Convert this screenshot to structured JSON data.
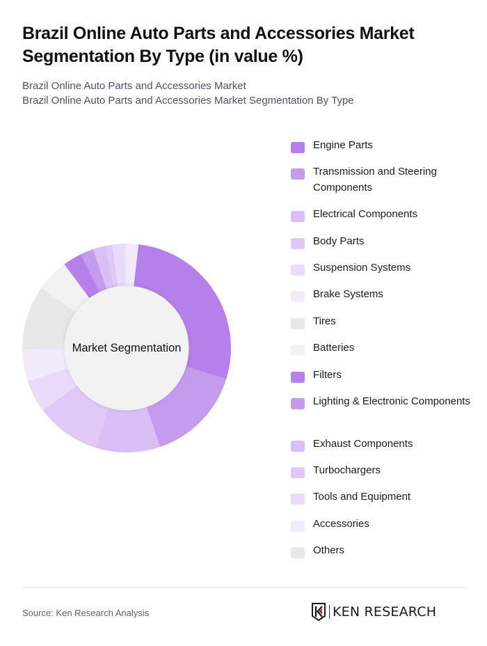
{
  "header": {
    "title": "Brazil Online Auto Parts and Accessories Market Segmentation By Type (in value %)",
    "subtitle_line1": "Brazil Online Auto Parts and Accessories Market",
    "subtitle_line2": "Brazil Online Auto Parts and Accessories Market Segmentation By Type"
  },
  "chart": {
    "center_label": "Market Segmentation",
    "start_angle_deg": 6.5
  },
  "chart_data": {
    "type": "pie",
    "subtype": "donut",
    "title": "Brazil Online Auto Parts and Accessories Market Segmentation By Type (in value %)",
    "center_label": "Market Segmentation",
    "legend_position": "right",
    "categories": [
      "Engine Parts",
      "Transmission and Steering Components",
      "Electrical Components",
      "Body Parts",
      "Suspension Systems",
      "Brake Systems",
      "Tires",
      "Batteries",
      "Filters",
      "Lighting & Electronic Components",
      "Exhaust Components",
      "Turbochargers",
      "Tools and Equipment",
      "Accessories",
      "Others"
    ],
    "values": [
      28,
      15,
      10,
      10,
      5,
      5,
      10,
      5,
      3,
      2,
      2,
      1,
      2,
      2,
      0
    ],
    "colors": [
      "#b580ea",
      "#c59bee",
      "#dabff7",
      "#e0c9f7",
      "#e9dbfa",
      "#f2ebfc",
      "#e8e8e8",
      "#f2f2f2",
      "#b580ea",
      "#c59bee",
      "#dabff7",
      "#e0c9f7",
      "#e9dbfa",
      "#f2ebfc",
      "#e8e8e8"
    ],
    "unit": "%"
  },
  "legend": {
    "items": [
      {
        "label": "Engine Parts",
        "color": "#b580ea"
      },
      {
        "label": "Transmission and Steering Components",
        "color": "#c59bee"
      },
      {
        "label": "Electrical Components",
        "color": "#dabff7"
      },
      {
        "label": "Body Parts",
        "color": "#e0c9f7"
      },
      {
        "label": "Suspension Systems",
        "color": "#e9dbfa"
      },
      {
        "label": "Brake Systems",
        "color": "#f2ebfc"
      },
      {
        "label": "Tires",
        "color": "#e8e8e8"
      },
      {
        "label": "Batteries",
        "color": "#f2f2f2"
      },
      {
        "label": "Filters",
        "color": "#b580ea"
      },
      {
        "label": "Lighting & Electronic Components",
        "color": "#c59bee"
      },
      {
        "label": "Exhaust Components",
        "color": "#dabff7"
      },
      {
        "label": "Turbochargers",
        "color": "#e0c9f7"
      },
      {
        "label": "Tools and Equipment",
        "color": "#e9dbfa"
      },
      {
        "label": "Accessories",
        "color": "#f2ebfc"
      },
      {
        "label": "Others",
        "color": "#e8e8e8"
      }
    ]
  },
  "footer": {
    "source": "Source: Ken Research Analysis",
    "logo_text": "KEN RESEARCH",
    "logo_accent_color": "#d0202e"
  }
}
